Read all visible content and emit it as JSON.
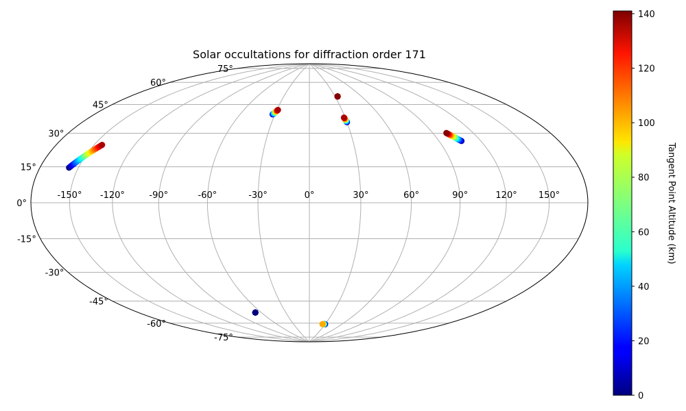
{
  "chart_data": {
    "type": "scatter",
    "projection": "hammer",
    "title": "Solar occultations for diffraction order 171",
    "grid": true,
    "x_ticks": [
      "-150°",
      "-120°",
      "-90°",
      "-60°",
      "-30°",
      "0°",
      "30°",
      "60°",
      "90°",
      "120°",
      "150°"
    ],
    "x_tick_values": [
      -150,
      -120,
      -90,
      -60,
      -30,
      0,
      30,
      60,
      90,
      120,
      150
    ],
    "y_ticks": [
      "-75°",
      "-60°",
      "-45°",
      "-30°",
      "-15°",
      "0°",
      "15°",
      "30°",
      "45°",
      "60°",
      "75°"
    ],
    "y_tick_values": [
      -75,
      -60,
      -45,
      -30,
      -15,
      0,
      15,
      30,
      45,
      60,
      75
    ],
    "colorbar": {
      "label": "Tangent Point Altitude (km)",
      "colormap": "jet",
      "min": 0,
      "max": 141,
      "ticks": [
        "0",
        "20",
        "40",
        "60",
        "80",
        "100",
        "120",
        "140"
      ],
      "tick_values": [
        0,
        20,
        40,
        60,
        80,
        100,
        120,
        140
      ]
    },
    "series": [
      {
        "points": [
          {
            "lon": -157,
            "lat": 16,
            "alt": 0
          },
          {
            "lon": -144,
            "lat": 28,
            "alt": 135
          }
        ]
      },
      {
        "points": [
          {
            "lon": -32,
            "lat": 53,
            "alt": 10
          },
          {
            "lon": -29,
            "lat": 56,
            "alt": 135
          }
        ]
      },
      {
        "points": [
          {
            "lon": 33,
            "lat": 65,
            "alt": 140
          },
          {
            "lon": 33,
            "lat": 65,
            "alt": 140
          }
        ]
      },
      {
        "points": [
          {
            "lon": 30,
            "lat": 48,
            "alt": 5
          },
          {
            "lon": 29,
            "lat": 51,
            "alt": 135
          }
        ]
      },
      {
        "points": [
          {
            "lon": 106,
            "lat": 33,
            "alt": 5
          },
          {
            "lon": 100,
            "lat": 38,
            "alt": 140
          }
        ]
      },
      {
        "points": [
          {
            "lon": -67,
            "lat": -66,
            "alt": 0
          },
          {
            "lon": -67,
            "lat": -66,
            "alt": 0
          }
        ]
      },
      {
        "points": [
          {
            "lon": 30,
            "lat": -76,
            "alt": 0
          },
          {
            "lon": 25,
            "lat": -76,
            "alt": 100
          }
        ]
      }
    ]
  }
}
